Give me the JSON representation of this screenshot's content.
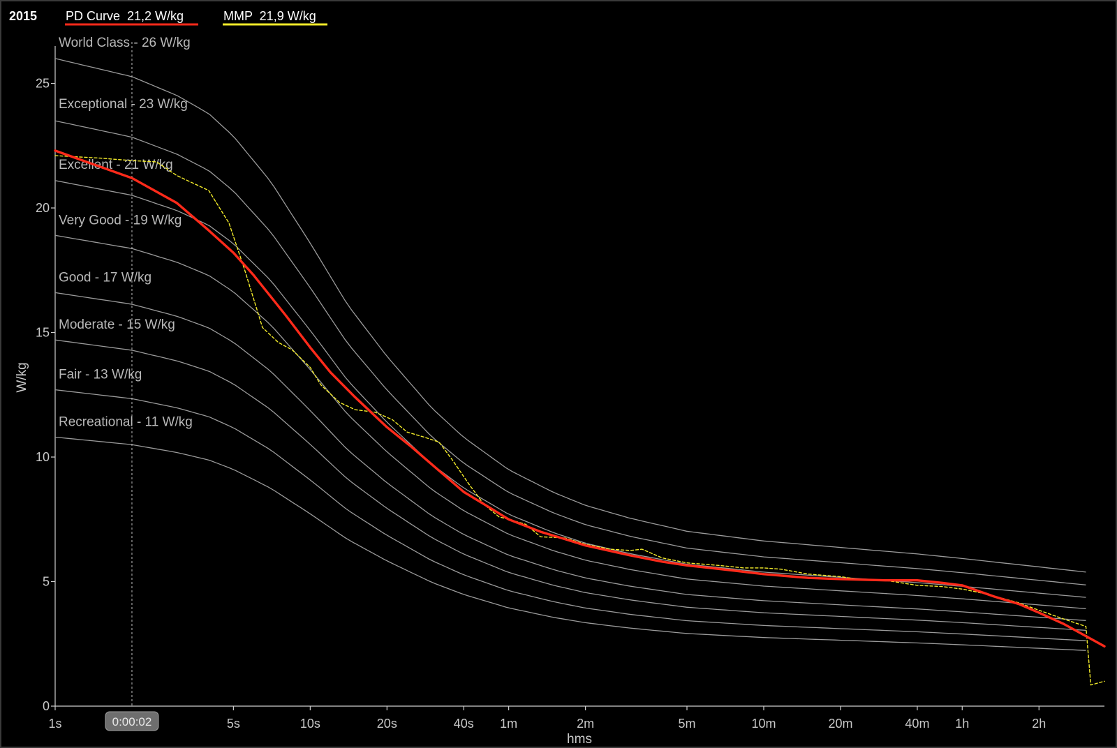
{
  "header": {
    "year": "2015",
    "legend": [
      {
        "label": "PD Curve  21,2 W/kg",
        "color": "#ff2a1a"
      },
      {
        "label": "MMP  21,9 W/kg",
        "color": "#f2ea2a"
      }
    ]
  },
  "cursor": {
    "label": "0:00:02",
    "x_seconds": 2
  },
  "chart_data": {
    "type": "line",
    "xlabel": "hms",
    "ylabel": "W/kg",
    "x_scale": "log",
    "xlim_seconds": [
      1,
      13000
    ],
    "ylim": [
      0,
      26.5
    ],
    "grid": false,
    "x_ticks": [
      {
        "label": "1s",
        "seconds": 1
      },
      {
        "label": "5s",
        "seconds": 5
      },
      {
        "label": "10s",
        "seconds": 10
      },
      {
        "label": "20s",
        "seconds": 20
      },
      {
        "label": "40s",
        "seconds": 40
      },
      {
        "label": "1m",
        "seconds": 60
      },
      {
        "label": "2m",
        "seconds": 120
      },
      {
        "label": "5m",
        "seconds": 300
      },
      {
        "label": "10m",
        "seconds": 600
      },
      {
        "label": "20m",
        "seconds": 1200
      },
      {
        "label": "40m",
        "seconds": 2400
      },
      {
        "label": "1h",
        "seconds": 3600
      },
      {
        "label": "2h",
        "seconds": 7200
      }
    ],
    "y_ticks": [
      {
        "label": "0",
        "value": 0
      },
      {
        "label": "5",
        "value": 5
      },
      {
        "label": "10",
        "value": 10
      },
      {
        "label": "15",
        "value": 15
      },
      {
        "label": "20",
        "value": 20
      },
      {
        "label": "25",
        "value": 25
      }
    ],
    "reference_curves": [
      {
        "label": "World Class - 26 W/kg",
        "peak": 26,
        "color": "#9a9a9a"
      },
      {
        "label": "Exceptional - 23 W/kg",
        "peak": 23.5,
        "color": "#9a9a9a"
      },
      {
        "label": "Excellent - 21 W/kg",
        "peak": 21.1,
        "color": "#9a9a9a"
      },
      {
        "label": "Very Good - 19 W/kg",
        "peak": 18.9,
        "color": "#9a9a9a"
      },
      {
        "label": "Good - 17 W/kg",
        "peak": 16.6,
        "color": "#9a9a9a"
      },
      {
        "label": "Moderate - 15 W/kg",
        "peak": 14.7,
        "color": "#9a9a9a"
      },
      {
        "label": "Fair - 13 W/kg",
        "peak": 12.7,
        "color": "#9a9a9a"
      },
      {
        "label": "Recreational - 11 W/kg",
        "peak": 10.8,
        "color": "#9a9a9a"
      }
    ],
    "reference_shape": {
      "x": [
        1,
        2,
        3,
        4,
        5,
        7,
        10,
        14,
        20,
        30,
        40,
        60,
        90,
        120,
        180,
        300,
        600,
        1200,
        2400,
        3600,
        7200,
        11000
      ],
      "ratio": [
        1.0,
        0.972,
        0.943,
        0.915,
        0.88,
        0.81,
        0.715,
        0.62,
        0.54,
        0.46,
        0.415,
        0.365,
        0.33,
        0.31,
        0.29,
        0.27,
        0.255,
        0.245,
        0.235,
        0.228,
        0.215,
        0.207
      ],
      "end_seconds": 11000
    },
    "series": [
      {
        "name": "PD Curve",
        "color": "#ff2a1a",
        "x": [
          1,
          2,
          3,
          4,
          5,
          6,
          8,
          10,
          12,
          15,
          20,
          25,
          30,
          40,
          50,
          60,
          80,
          100,
          120,
          180,
          240,
          300,
          450,
          600,
          900,
          1200,
          1800,
          2400,
          3000,
          3600,
          4800,
          6000,
          7200,
          9000,
          13000
        ],
        "y": [
          22.3,
          21.2,
          20.2,
          19.1,
          18.2,
          17.3,
          15.7,
          14.4,
          13.4,
          12.4,
          11.2,
          10.4,
          9.7,
          8.6,
          8.0,
          7.5,
          7.0,
          6.7,
          6.45,
          6.05,
          5.8,
          5.65,
          5.45,
          5.3,
          5.15,
          5.1,
          5.05,
          5.05,
          4.95,
          4.85,
          4.4,
          4.1,
          3.75,
          3.3,
          2.4
        ]
      },
      {
        "name": "MMP",
        "color": "#f2ea2a",
        "x": [
          1,
          1.5,
          2,
          2.5,
          3,
          4,
          4.8,
          5.5,
          6.5,
          7.5,
          8.5,
          10,
          11,
          13,
          15,
          18,
          21,
          24,
          28,
          32,
          36,
          42,
          48,
          55,
          60,
          70,
          80,
          100,
          120,
          150,
          180,
          200,
          240,
          300,
          400,
          500,
          600,
          700,
          900,
          1200,
          1500,
          1800,
          2400,
          3000,
          3600,
          4500,
          6000,
          7200,
          9000,
          11000,
          11500,
          13000
        ],
        "y": [
          22.1,
          22.0,
          21.9,
          21.85,
          21.3,
          20.7,
          19.4,
          17.6,
          15.2,
          14.6,
          14.3,
          13.6,
          12.9,
          12.2,
          11.9,
          11.8,
          11.5,
          11.0,
          10.8,
          10.6,
          9.9,
          8.9,
          8.1,
          7.6,
          7.5,
          7.3,
          6.8,
          6.75,
          6.5,
          6.3,
          6.25,
          6.3,
          5.95,
          5.75,
          5.65,
          5.55,
          5.55,
          5.5,
          5.3,
          5.2,
          5.05,
          5.05,
          4.85,
          4.8,
          4.7,
          4.5,
          4.15,
          3.85,
          3.5,
          3.2,
          0.85,
          1.0
        ]
      }
    ]
  }
}
